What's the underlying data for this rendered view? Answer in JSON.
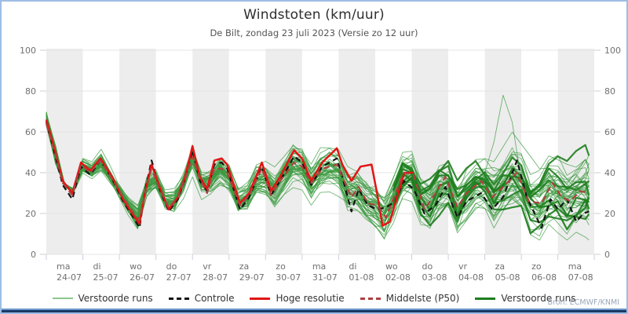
{
  "chart_data": {
    "type": "line",
    "title": "Windstoten (km/uur)",
    "subtitle": "De Bilt, zondag 23 juli 2023 (Versie zo 12 uur)",
    "ylabel": "",
    "xlabel": "",
    "ylim": [
      0,
      100
    ],
    "yticks": [
      0,
      20,
      40,
      60,
      80,
      100
    ],
    "grid": "horizontal",
    "day_bands_shaded": "alternate starting with first day",
    "x_days": [
      {
        "dow": "ma",
        "date": "24-07"
      },
      {
        "dow": "di",
        "date": "25-07"
      },
      {
        "dow": "wo",
        "date": "26-07"
      },
      {
        "dow": "do",
        "date": "27-07"
      },
      {
        "dow": "vr",
        "date": "28-07"
      },
      {
        "dow": "za",
        "date": "29-07"
      },
      {
        "dow": "zo",
        "date": "30-07"
      },
      {
        "dow": "ma",
        "date": "31-07"
      },
      {
        "dow": "di",
        "date": "01-08"
      },
      {
        "dow": "wo",
        "date": "02-08"
      },
      {
        "dow": "do",
        "date": "03-08"
      },
      {
        "dow": "vr",
        "date": "04-08"
      },
      {
        "dow": "za",
        "date": "05-08"
      },
      {
        "dow": "zo",
        "date": "06-08"
      },
      {
        "dow": "ma",
        "date": "07-08"
      }
    ],
    "legend": [
      {
        "label": "Verstoorde runs",
        "style": "thin-green"
      },
      {
        "label": "Controle",
        "style": "black-dashed"
      },
      {
        "label": "Hoge resolutie",
        "style": "red-solid"
      },
      {
        "label": "Middelste (P50)",
        "style": "darkred-dashed"
      },
      {
        "label": "Verstoorde runs",
        "style": "thick-green"
      }
    ],
    "colors": {
      "member_thin": "#3a9a3e",
      "member_thick": "#1e7d1e",
      "controle": "#141414",
      "hoge_resolutie": "#e31414",
      "middelste_p50": "#b04040",
      "band_gray": "#ededed",
      "gridline": "#e4e4e4",
      "tick": "#c6cfdf",
      "axis_text": "#707070"
    },
    "series": {
      "hoge_resolutie": {
        "note": "t in days after 24-07 00h, value km/uur; run ends ~day 10",
        "points": [
          [
            0,
            66
          ],
          [
            0.25,
            50
          ],
          [
            0.45,
            36
          ],
          [
            0.71,
            30
          ],
          [
            0.95,
            45
          ],
          [
            1.2,
            41
          ],
          [
            1.48,
            47
          ],
          [
            1.8,
            38
          ],
          [
            2.1,
            27
          ],
          [
            2.35,
            20
          ],
          [
            2.55,
            15
          ],
          [
            2.7,
            30
          ],
          [
            2.88,
            44
          ],
          [
            3.1,
            33
          ],
          [
            3.35,
            22
          ],
          [
            3.6,
            28
          ],
          [
            3.8,
            38
          ],
          [
            4.0,
            53
          ],
          [
            4.2,
            38
          ],
          [
            4.4,
            32
          ],
          [
            4.6,
            46
          ],
          [
            4.8,
            47
          ],
          [
            4.95,
            44
          ],
          [
            5.3,
            25
          ],
          [
            5.55,
            30
          ],
          [
            5.9,
            45
          ],
          [
            6.15,
            31
          ],
          [
            6.4,
            38
          ],
          [
            6.78,
            51
          ],
          [
            7.0,
            47
          ],
          [
            7.25,
            36
          ],
          [
            7.55,
            45
          ],
          [
            7.95,
            52
          ],
          [
            8.1,
            44
          ],
          [
            8.35,
            36
          ],
          [
            8.6,
            43
          ],
          [
            8.9,
            44
          ],
          [
            9.05,
            30
          ],
          [
            9.2,
            14
          ],
          [
            9.4,
            16
          ],
          [
            9.6,
            28
          ],
          [
            9.8,
            40
          ],
          [
            10.05,
            40
          ]
        ]
      },
      "controle": {
        "points": [
          [
            0,
            65
          ],
          [
            0.25,
            48
          ],
          [
            0.45,
            34
          ],
          [
            0.71,
            27
          ],
          [
            0.95,
            43
          ],
          [
            1.2,
            39
          ],
          [
            1.48,
            46
          ],
          [
            1.8,
            37
          ],
          [
            2.1,
            26
          ],
          [
            2.35,
            19
          ],
          [
            2.55,
            13
          ],
          [
            2.7,
            31
          ],
          [
            2.88,
            46
          ],
          [
            3.1,
            32
          ],
          [
            3.35,
            21
          ],
          [
            3.6,
            27
          ],
          [
            3.8,
            37
          ],
          [
            4.0,
            51
          ],
          [
            4.2,
            36
          ],
          [
            4.4,
            31
          ],
          [
            4.6,
            44
          ],
          [
            4.8,
            45
          ],
          [
            4.95,
            42
          ],
          [
            5.3,
            22
          ],
          [
            5.55,
            28
          ],
          [
            5.9,
            43
          ],
          [
            6.15,
            29
          ],
          [
            6.4,
            36
          ],
          [
            6.78,
            48
          ],
          [
            7.0,
            45
          ],
          [
            7.25,
            34
          ],
          [
            7.55,
            43
          ],
          [
            7.95,
            47
          ],
          [
            8.1,
            38
          ],
          [
            8.35,
            21
          ],
          [
            8.55,
            32
          ],
          [
            8.8,
            24
          ],
          [
            9.05,
            22
          ],
          [
            9.3,
            23
          ],
          [
            9.55,
            26
          ],
          [
            9.78,
            36
          ],
          [
            10.05,
            32
          ],
          [
            10.35,
            20
          ],
          [
            10.65,
            24
          ],
          [
            10.92,
            33
          ],
          [
            11.25,
            18
          ],
          [
            11.5,
            26
          ],
          [
            11.9,
            30
          ],
          [
            12.2,
            22
          ],
          [
            12.5,
            28
          ],
          [
            12.88,
            46
          ],
          [
            13.15,
            28
          ],
          [
            13.55,
            13
          ],
          [
            13.8,
            27
          ],
          [
            14.0,
            22
          ],
          [
            14.25,
            27
          ],
          [
            14.5,
            16
          ],
          [
            14.7,
            20
          ],
          [
            14.85,
            21
          ]
        ]
      },
      "middelste": {
        "points": [
          [
            0,
            64
          ],
          [
            0.25,
            49
          ],
          [
            0.45,
            35
          ],
          [
            0.71,
            29
          ],
          [
            0.95,
            44
          ],
          [
            1.2,
            40
          ],
          [
            1.48,
            46
          ],
          [
            1.8,
            37
          ],
          [
            2.1,
            28
          ],
          [
            2.35,
            21
          ],
          [
            2.55,
            17
          ],
          [
            2.7,
            30
          ],
          [
            2.88,
            42
          ],
          [
            3.1,
            32
          ],
          [
            3.35,
            23
          ],
          [
            3.6,
            28
          ],
          [
            3.8,
            37
          ],
          [
            4.0,
            48
          ],
          [
            4.2,
            37
          ],
          [
            4.4,
            30
          ],
          [
            4.6,
            42
          ],
          [
            4.8,
            42
          ],
          [
            4.95,
            40
          ],
          [
            5.3,
            24
          ],
          [
            5.55,
            29
          ],
          [
            5.9,
            42
          ],
          [
            6.15,
            29
          ],
          [
            6.4,
            36
          ],
          [
            6.78,
            45
          ],
          [
            7.0,
            43
          ],
          [
            7.25,
            35
          ],
          [
            7.55,
            42
          ],
          [
            7.95,
            44
          ],
          [
            8.1,
            38
          ],
          [
            8.35,
            28
          ],
          [
            8.55,
            33
          ],
          [
            8.8,
            25
          ],
          [
            9.05,
            24
          ],
          [
            9.3,
            18
          ],
          [
            9.55,
            30
          ],
          [
            9.78,
            40
          ],
          [
            10.05,
            39
          ],
          [
            10.35,
            22
          ],
          [
            10.65,
            30
          ],
          [
            10.92,
            38
          ],
          [
            11.25,
            23
          ],
          [
            11.5,
            30
          ],
          [
            11.9,
            36
          ],
          [
            12.2,
            28
          ],
          [
            12.5,
            33
          ],
          [
            12.88,
            40
          ],
          [
            13.2,
            26
          ],
          [
            13.55,
            25
          ],
          [
            13.85,
            35
          ],
          [
            14.1,
            28
          ],
          [
            14.35,
            26
          ],
          [
            14.6,
            31
          ],
          [
            14.85,
            30
          ]
        ]
      }
    },
    "ensemble": {
      "count": 48,
      "thick_member_count": 7,
      "thick_from_t": 9.4,
      "seed": 2023,
      "persist": 0.88,
      "walk_base": 0.9,
      "walk_growth": 0.62,
      "fan_in_days": 1.5,
      "start_range": [
        63,
        70
      ],
      "clamp": [
        7,
        87
      ],
      "outlier_member": 12,
      "outlier_points": [
        [
          12.0,
          40
        ],
        [
          12.25,
          55
        ],
        [
          12.5,
          78
        ],
        [
          12.6,
          85
        ],
        [
          12.8,
          58
        ],
        [
          13.0,
          36
        ]
      ]
    }
  },
  "source_credit": "Bron: ECMWF/KNMI"
}
